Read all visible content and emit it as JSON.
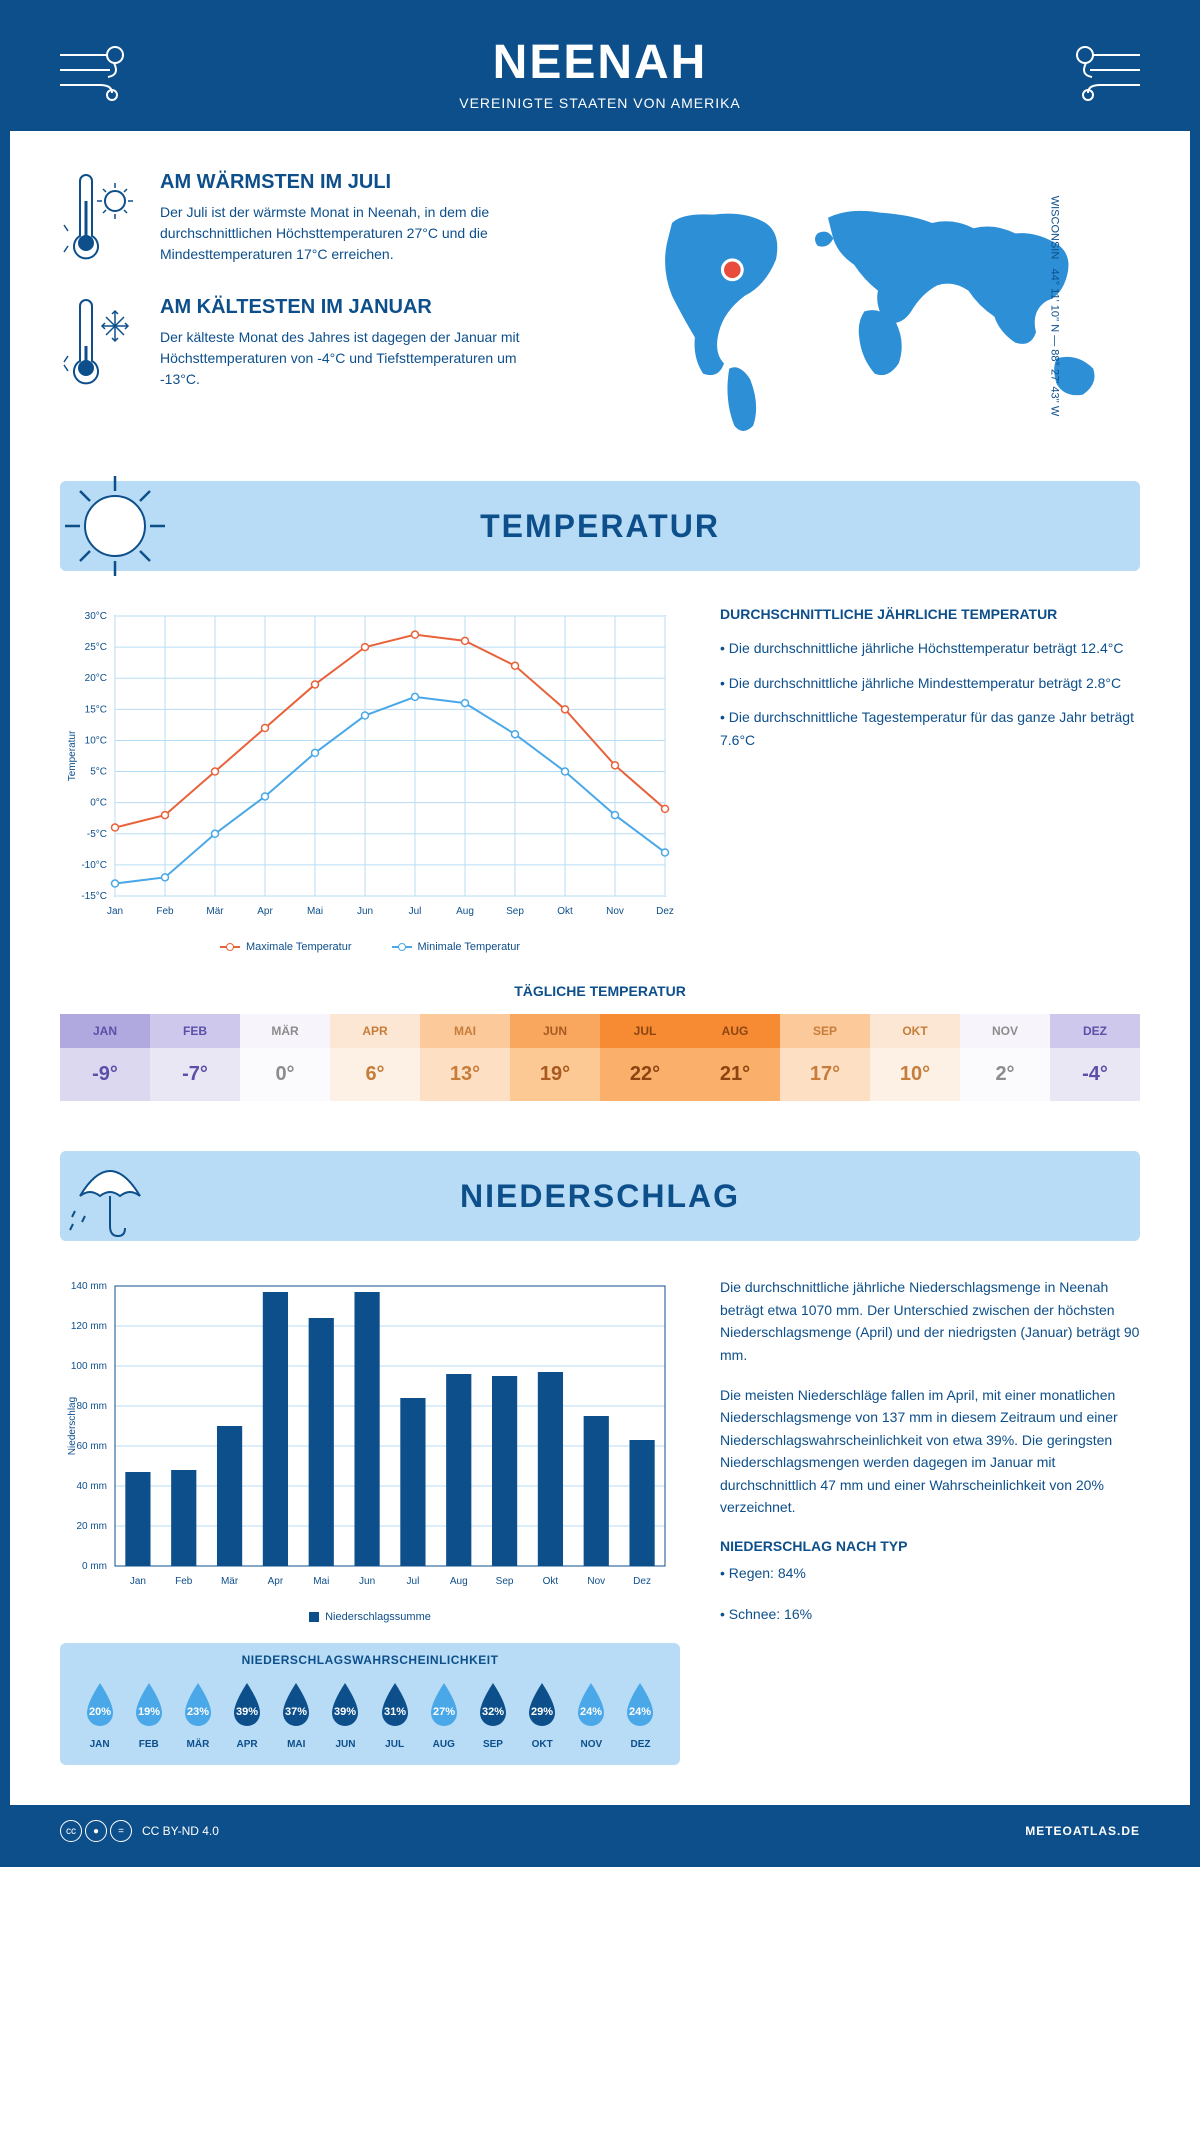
{
  "header": {
    "title": "NEENAH",
    "subtitle": "VEREINIGTE STAATEN VON AMERIKA"
  },
  "coords": {
    "text": "44° 11' 10'' N — 88° 27' 43'' W",
    "region": "WISCONSIN"
  },
  "warm_block": {
    "title": "AM WÄRMSTEN IM JULI",
    "text": "Der Juli ist der wärmste Monat in Neenah, in dem die durchschnittlichen Höchsttemperaturen 27°C und die Mindesttemperaturen 17°C erreichen."
  },
  "cold_block": {
    "title": "AM KÄLTESTEN IM JANUAR",
    "text": "Der kälteste Monat des Jahres ist dagegen der Januar mit Höchsttemperaturen von -4°C und Tiefsttemperaturen um -13°C."
  },
  "temp_section": {
    "banner": "TEMPERATUR",
    "info_title": "DURCHSCHNITTLICHE JÄHRLICHE TEMPERATUR",
    "bullets": [
      "• Die durchschnittliche jährliche Höchsttemperatur beträgt 12.4°C",
      "• Die durchschnittliche jährliche Mindesttemperatur beträgt 2.8°C",
      "• Die durchschnittliche Tagestemperatur für das ganze Jahr beträgt 7.6°C"
    ],
    "legend_max": "Maximale Temperatur",
    "legend_min": "Minimale Temperatur",
    "daily_title": "TÄGLICHE TEMPERATUR"
  },
  "temp_chart": {
    "type": "line",
    "months": [
      "Jan",
      "Feb",
      "Mär",
      "Apr",
      "Mai",
      "Jun",
      "Jul",
      "Aug",
      "Sep",
      "Okt",
      "Nov",
      "Dez"
    ],
    "max_series": [
      -4,
      -2,
      5,
      12,
      19,
      25,
      27,
      26,
      22,
      15,
      6,
      -1
    ],
    "min_series": [
      -13,
      -12,
      -5,
      1,
      8,
      14,
      17,
      16,
      11,
      5,
      -2,
      -8
    ],
    "max_color": "#e8623a",
    "min_color": "#4aa8e8",
    "ylim": [
      -15,
      30
    ],
    "ytick_step": 5,
    "yaxis_label": "Temperatur",
    "grid_color": "#b8dcf5",
    "background": "#ffffff"
  },
  "daily_temp": {
    "months": [
      "JAN",
      "FEB",
      "MÄR",
      "APR",
      "MAI",
      "JUN",
      "JUL",
      "AUG",
      "SEP",
      "OKT",
      "NOV",
      "DEZ"
    ],
    "values": [
      "-9°",
      "-7°",
      "0°",
      "6°",
      "13°",
      "19°",
      "22°",
      "21°",
      "17°",
      "10°",
      "2°",
      "-4°"
    ],
    "head_colors": [
      "#b0a9e0",
      "#cec9ec",
      "#f7f5fb",
      "#fce7d4",
      "#fbc99a",
      "#f9a65f",
      "#f78b33",
      "#f78b33",
      "#fbc99a",
      "#fce7d4",
      "#f7f5fb",
      "#cec9ec"
    ],
    "body_colors": [
      "#dcd8f0",
      "#eae7f5",
      "#fbfafd",
      "#fdf1e6",
      "#fde0c4",
      "#fcc893",
      "#fab06a",
      "#fab06a",
      "#fde0c4",
      "#fdf1e6",
      "#fbfafd",
      "#eae7f5"
    ],
    "text_colors": [
      "#5b4fa8",
      "#5b4fa8",
      "#8c8c8c",
      "#c77d3a",
      "#c77d3a",
      "#a85a1f",
      "#8c4510",
      "#8c4510",
      "#c77d3a",
      "#c77d3a",
      "#8c8c8c",
      "#5b4fa8"
    ]
  },
  "precip_section": {
    "banner": "NIEDERSCHLAG",
    "legend": "Niederschlagssumme",
    "prob_title": "NIEDERSCHLAGSWAHRSCHEINLICHKEIT",
    "para1": "Die durchschnittliche jährliche Niederschlagsmenge in Neenah beträgt etwa 1070 mm. Der Unterschied zwischen der höchsten Niederschlagsmenge (April) und der niedrigsten (Januar) beträgt 90 mm.",
    "para2": "Die meisten Niederschläge fallen im April, mit einer monatlichen Niederschlagsmenge von 137 mm in diesem Zeitraum und einer Niederschlagswahrscheinlichkeit von etwa 39%. Die geringsten Niederschlagsmengen werden dagegen im Januar mit durchschnittlich 47 mm und einer Wahrscheinlichkeit von 20% verzeichnet.",
    "type_title": "NIEDERSCHLAG NACH TYP",
    "type_rain": "• Regen: 84%",
    "type_snow": "• Schnee: 16%"
  },
  "precip_chart": {
    "type": "bar",
    "months": [
      "Jan",
      "Feb",
      "Mär",
      "Apr",
      "Mai",
      "Jun",
      "Jul",
      "Aug",
      "Sep",
      "Okt",
      "Nov",
      "Dez"
    ],
    "values": [
      47,
      48,
      70,
      137,
      124,
      137,
      84,
      96,
      95,
      97,
      75,
      63
    ],
    "bar_color": "#0d4f8b",
    "ylim": [
      0,
      140
    ],
    "ytick_step": 20,
    "yaxis_label": "Niederschlag",
    "grid_color": "#b8dcf5",
    "bar_width": 0.55
  },
  "precip_prob": {
    "months": [
      "JAN",
      "FEB",
      "MÄR",
      "APR",
      "MAI",
      "JUN",
      "JUL",
      "AUG",
      "SEP",
      "OKT",
      "NOV",
      "DEZ"
    ],
    "values": [
      "20%",
      "19%",
      "23%",
      "39%",
      "37%",
      "39%",
      "31%",
      "27%",
      "32%",
      "29%",
      "24%",
      "24%"
    ],
    "colors": [
      "#4aa8e8",
      "#4aa8e8",
      "#4aa8e8",
      "#0d4f8b",
      "#0d4f8b",
      "#0d4f8b",
      "#0d4f8b",
      "#4aa8e8",
      "#0d4f8b",
      "#0d4f8b",
      "#4aa8e8",
      "#4aa8e8"
    ]
  },
  "footer": {
    "license": "CC BY-ND 4.0",
    "site": "METEOATLAS.DE"
  }
}
